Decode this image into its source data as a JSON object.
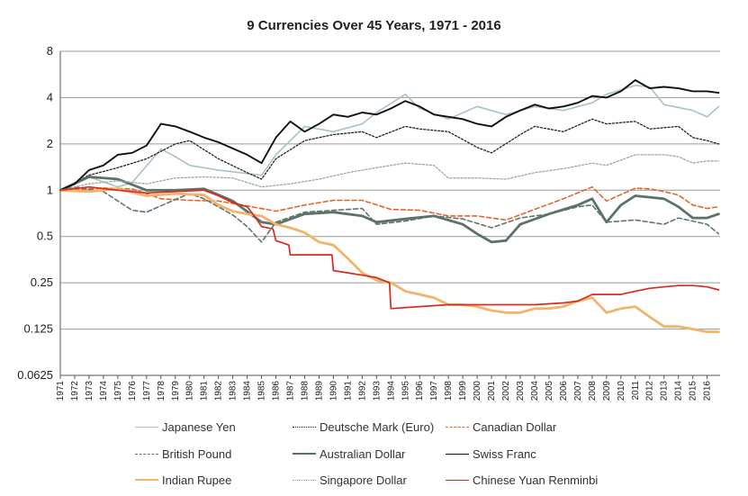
{
  "chart_data": {
    "type": "line",
    "title": "9 Currencies Over 45 Years, 1971 - 2016",
    "xlabel": "",
    "ylabel": "",
    "xlim": [
      1971,
      2016.9
    ],
    "ylim": [
      0.0625,
      8
    ],
    "yscale": "log2",
    "yticks": [
      "8",
      "4",
      "2",
      "1",
      "0.5",
      "0.25",
      "0.125",
      "0.0625"
    ],
    "ytick_values": [
      8,
      4,
      2,
      1,
      0.5,
      0.25,
      0.125,
      0.0625
    ],
    "xticks": [
      "1971",
      "1972",
      "1973",
      "1974",
      "1975",
      "1976",
      "1977",
      "1978",
      "1979",
      "1980",
      "1981",
      "1982",
      "1983",
      "1984",
      "1985",
      "1986",
      "1987",
      "1988",
      "1989",
      "1990",
      "1991",
      "1992",
      "1993",
      "1994",
      "1995",
      "1996",
      "1997",
      "1998",
      "1999",
      "2000",
      "2001",
      "2002",
      "2003",
      "2004",
      "2005",
      "2006",
      "2007",
      "2008",
      "2009",
      "2010",
      "2011",
      "2012",
      "2013",
      "2014",
      "2015",
      "2016"
    ],
    "legend": "bottom",
    "series": [
      {
        "name": "Japanese Yen",
        "color": "#a9c4b6",
        "dash": "solid",
        "width": 1.6,
        "x": [
          1971,
          1973,
          1975,
          1976,
          1978,
          1979,
          1980,
          1982,
          1985,
          1986,
          1988,
          1990,
          1992,
          1993,
          1995,
          1996,
          1998,
          2000,
          2002,
          2004,
          2006,
          2008,
          2009,
          2011,
          2012,
          2013,
          2015,
          2016,
          2016.8
        ],
        "y": [
          1,
          1.22,
          1.05,
          1.12,
          1.85,
          1.65,
          1.45,
          1.35,
          1.25,
          1.7,
          2.6,
          2.4,
          2.7,
          3.2,
          4.2,
          3.4,
          2.9,
          3.5,
          3.1,
          3.5,
          3.3,
          3.7,
          4.2,
          4.8,
          4.7,
          3.6,
          3.3,
          3.0,
          3.5
        ]
      },
      {
        "name": "Deutsche Mark (Euro)",
        "color": "#222222",
        "dash": "2,2",
        "width": 1.3,
        "x": [
          1971,
          1973,
          1975,
          1977,
          1979,
          1980,
          1982,
          1984,
          1985,
          1986,
          1988,
          1990,
          1992,
          1993,
          1995,
          1996,
          1998,
          2000,
          2001,
          2003,
          2004,
          2006,
          2008,
          2009,
          2011,
          2012,
          2014,
          2015,
          2016,
          2016.8
        ],
        "y": [
          1,
          1.25,
          1.4,
          1.6,
          2.0,
          2.1,
          1.6,
          1.3,
          1.18,
          1.6,
          2.1,
          2.3,
          2.4,
          2.2,
          2.6,
          2.5,
          2.4,
          1.9,
          1.75,
          2.3,
          2.6,
          2.4,
          2.9,
          2.7,
          2.8,
          2.5,
          2.6,
          2.2,
          2.1,
          2.0
        ]
      },
      {
        "name": "Canadian Dollar",
        "color": "#e4662b",
        "dash": "5,3",
        "width": 1.6,
        "x": [
          1971,
          1974,
          1976,
          1978,
          1980,
          1982,
          1984,
          1986,
          1988,
          1990,
          1992,
          1994,
          1996,
          1998,
          2000,
          2002,
          2004,
          2006,
          2007,
          2008,
          2009,
          2011,
          2012,
          2013,
          2014,
          2015,
          2016,
          2016.8
        ],
        "y": [
          1,
          1.03,
          1.02,
          0.88,
          0.86,
          0.85,
          0.79,
          0.73,
          0.8,
          0.86,
          0.86,
          0.75,
          0.74,
          0.68,
          0.68,
          0.64,
          0.75,
          0.88,
          0.96,
          1.05,
          0.85,
          1.03,
          1.02,
          0.98,
          0.93,
          0.8,
          0.76,
          0.78
        ]
      },
      {
        "name": "British Pound",
        "color": "#5f7869",
        "dash": "5,3",
        "width": 1.6,
        "x": [
          1971,
          1972,
          1974,
          1976,
          1977,
          1979,
          1980,
          1981,
          1983,
          1984,
          1985,
          1986,
          1988,
          1990,
          1992,
          1993,
          1995,
          1997,
          1999,
          2001,
          2003,
          2005,
          2007,
          2008,
          2009,
          2011,
          2013,
          2014,
          2016,
          2016.8
        ],
        "y": [
          1,
          1.05,
          0.98,
          0.74,
          0.72,
          0.87,
          0.95,
          0.88,
          0.69,
          0.58,
          0.46,
          0.62,
          0.72,
          0.74,
          0.76,
          0.6,
          0.63,
          0.68,
          0.65,
          0.57,
          0.66,
          0.7,
          0.78,
          0.8,
          0.62,
          0.64,
          0.6,
          0.66,
          0.6,
          0.52
        ]
      },
      {
        "name": "Australian Dollar",
        "color": "#5b7268",
        "dash": "solid",
        "width": 2.8,
        "x": [
          1971,
          1973,
          1975,
          1977,
          1979,
          1981,
          1983,
          1985,
          1986,
          1988,
          1990,
          1992,
          1993,
          1995,
          1997,
          1999,
          2000,
          2001,
          2002,
          2003,
          2005,
          2007,
          2008,
          2009,
          2010,
          2011,
          2012,
          2013,
          2014,
          2015,
          2016,
          2016.8
        ],
        "y": [
          1,
          1.22,
          1.18,
          1.0,
          1.0,
          1.02,
          0.85,
          0.62,
          0.6,
          0.7,
          0.72,
          0.68,
          0.62,
          0.65,
          0.68,
          0.6,
          0.52,
          0.46,
          0.47,
          0.6,
          0.7,
          0.8,
          0.88,
          0.62,
          0.8,
          0.92,
          0.9,
          0.88,
          0.78,
          0.66,
          0.66,
          0.7
        ]
      },
      {
        "name": "Swiss Franc",
        "color": "#111111",
        "dash": "solid",
        "width": 1.9,
        "x": [
          1971,
          1972,
          1973,
          1974,
          1975,
          1976,
          1977,
          1978,
          1979,
          1980,
          1981,
          1982,
          1984,
          1985,
          1986,
          1987,
          1988,
          1989,
          1990,
          1991,
          1992,
          1993,
          1994,
          1995,
          1996,
          1997,
          1998,
          1999,
          2000,
          2001,
          2002,
          2003,
          2004,
          2005,
          2006,
          2007,
          2008,
          2009,
          2010,
          2011,
          2012,
          2013,
          2014,
          2015,
          2016,
          2016.8
        ],
        "y": [
          1,
          1.1,
          1.35,
          1.45,
          1.7,
          1.75,
          1.95,
          2.7,
          2.6,
          2.4,
          2.2,
          2.05,
          1.7,
          1.5,
          2.2,
          2.8,
          2.4,
          2.7,
          3.1,
          3.0,
          3.2,
          3.1,
          3.4,
          3.8,
          3.5,
          3.1,
          3.0,
          2.9,
          2.7,
          2.6,
          3.0,
          3.3,
          3.6,
          3.4,
          3.5,
          3.7,
          4.1,
          4.0,
          4.4,
          5.2,
          4.6,
          4.7,
          4.6,
          4.4,
          4.4,
          4.3
        ]
      },
      {
        "name": "Indian Rupee",
        "color": "#f2b36a",
        "dash": "solid",
        "width": 2.8,
        "x": [
          1971,
          1973,
          1975,
          1977,
          1979,
          1981,
          1982,
          1983,
          1984,
          1985,
          1986,
          1987,
          1988,
          1989,
          1990,
          1991,
          1992,
          1993,
          1994,
          1995,
          1996,
          1997,
          1998,
          1999,
          2000,
          2001,
          2002,
          2003,
          2004,
          2005,
          2006,
          2007,
          2008,
          2009,
          2010,
          2011,
          2012,
          2013,
          2014,
          2015,
          2016,
          2016.8
        ],
        "y": [
          1,
          0.98,
          1.02,
          0.92,
          0.95,
          0.93,
          0.8,
          0.73,
          0.7,
          0.68,
          0.6,
          0.57,
          0.53,
          0.46,
          0.44,
          0.36,
          0.29,
          0.26,
          0.25,
          0.22,
          0.21,
          0.2,
          0.18,
          0.18,
          0.175,
          0.165,
          0.16,
          0.16,
          0.17,
          0.17,
          0.175,
          0.19,
          0.2,
          0.16,
          0.17,
          0.175,
          0.15,
          0.13,
          0.13,
          0.125,
          0.12,
          0.12
        ]
      },
      {
        "name": "Singapore Dollar",
        "color": "#99a89f",
        "dash": "2,2",
        "width": 1.3,
        "x": [
          1971,
          1973,
          1975,
          1977,
          1979,
          1981,
          1983,
          1985,
          1987,
          1989,
          1991,
          1993,
          1995,
          1997,
          1998,
          2000,
          2002,
          2004,
          2006,
          2008,
          2009,
          2011,
          2013,
          2014,
          2015,
          2016,
          2016.8
        ],
        "y": [
          1,
          1.1,
          1.15,
          1.1,
          1.2,
          1.22,
          1.2,
          1.05,
          1.1,
          1.18,
          1.3,
          1.4,
          1.5,
          1.45,
          1.2,
          1.2,
          1.18,
          1.3,
          1.38,
          1.5,
          1.45,
          1.7,
          1.7,
          1.65,
          1.5,
          1.55,
          1.55
        ]
      },
      {
        "name": "Chinese Yuan Renminbi",
        "color": "#d92b1e",
        "dash": "solid",
        "width": 1.7,
        "x": [
          1971,
          1973,
          1975,
          1977,
          1979,
          1981,
          1982,
          1983,
          1984,
          1984.5,
          1985,
          1985.8,
          1986,
          1986.9,
          1987,
          1989,
          1989.9,
          1990,
          1991,
          1992,
          1993,
          1993.9,
          1994,
          1996,
          1998,
          2000,
          2002,
          2004,
          2006,
          2007,
          2008,
          2009,
          2010,
          2011,
          2012,
          2013,
          2014,
          2015,
          2016,
          2016.8
        ],
        "y": [
          1,
          1.05,
          1.0,
          0.96,
          0.98,
          1.0,
          0.92,
          0.83,
          0.78,
          0.68,
          0.58,
          0.56,
          0.47,
          0.44,
          0.38,
          0.38,
          0.38,
          0.3,
          0.29,
          0.28,
          0.27,
          0.25,
          0.17,
          0.175,
          0.18,
          0.18,
          0.18,
          0.18,
          0.185,
          0.19,
          0.21,
          0.21,
          0.21,
          0.22,
          0.23,
          0.235,
          0.24,
          0.24,
          0.235,
          0.225
        ]
      }
    ]
  }
}
